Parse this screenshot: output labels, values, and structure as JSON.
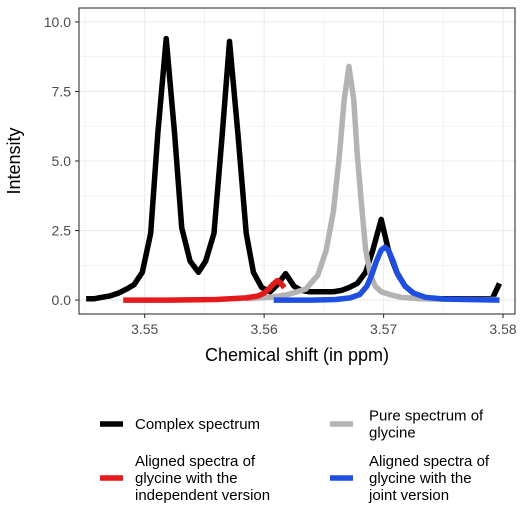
{
  "chart_data": {
    "type": "line",
    "xlabel": "Chemical shift (in ppm)",
    "ylabel": "Intensity",
    "xlim": [
      3.5445,
      3.581
    ],
    "ylim": [
      -0.5,
      10.5
    ],
    "x_ticks": [
      3.55,
      3.56,
      3.57,
      3.58
    ],
    "x_tick_labels": [
      "3.55",
      "3.56",
      "3.57",
      "3.58"
    ],
    "y_ticks": [
      0,
      2.5,
      5,
      7.5,
      10
    ],
    "y_tick_labels": [
      "0.0",
      "2.5",
      "5.0",
      "7.5",
      "10.0"
    ],
    "grid": true,
    "legend_position": "bottom",
    "series": [
      {
        "name": "Complex spectrum",
        "color": "#000000",
        "x": [
          3.5451,
          3.5458,
          3.5464,
          3.5471,
          3.5478,
          3.5485,
          3.5491,
          3.5498,
          3.5505,
          3.5511,
          3.5518,
          3.5525,
          3.5531,
          3.5538,
          3.5545,
          3.5551,
          3.5558,
          3.5565,
          3.5571,
          3.5578,
          3.5585,
          3.5591,
          3.5598,
          3.5605,
          3.5611,
          3.5618,
          3.5625,
          3.5631,
          3.5638,
          3.5645,
          3.5651,
          3.5658,
          3.5665,
          3.5671,
          3.5678,
          3.5685,
          3.5691,
          3.5698,
          3.5704,
          3.5711,
          3.5718,
          3.5725,
          3.5731,
          3.5738,
          3.5745,
          3.5751,
          3.5758,
          3.5765,
          3.5771,
          3.5778,
          3.5785,
          3.5791,
          3.5797
        ],
        "y": [
          0.05,
          0.05,
          0.1,
          0.15,
          0.25,
          0.4,
          0.55,
          1.0,
          2.4,
          6.0,
          9.4,
          6.0,
          2.6,
          1.4,
          1.0,
          1.4,
          2.4,
          6.0,
          9.3,
          6.0,
          2.4,
          1.0,
          0.45,
          0.3,
          0.55,
          0.95,
          0.5,
          0.35,
          0.3,
          0.3,
          0.3,
          0.3,
          0.35,
          0.45,
          0.6,
          1.0,
          1.8,
          2.9,
          1.8,
          1.0,
          0.5,
          0.25,
          0.1,
          0.05,
          0.05,
          0.05,
          0.05,
          0.05,
          0.05,
          0.05,
          0.05,
          0.05,
          0.6
        ]
      },
      {
        "name": "Pure spectrum of glycine",
        "color": "#b3b3b3",
        "x": [
          3.5585,
          3.5605,
          3.562,
          3.5635,
          3.5645,
          3.5652,
          3.5658,
          3.5663,
          3.5667,
          3.5671,
          3.5675,
          3.5678,
          3.5682,
          3.5685,
          3.5689,
          3.5693,
          3.5698,
          3.5705,
          3.5715,
          3.573,
          3.575,
          3.5775,
          3.5795
        ],
        "y": [
          0.05,
          0.1,
          0.2,
          0.4,
          0.9,
          1.8,
          3.2,
          5.2,
          7.2,
          8.4,
          7.2,
          5.2,
          3.2,
          1.8,
          0.9,
          0.5,
          0.3,
          0.2,
          0.1,
          0.05,
          0.03,
          0.02,
          0.02
        ]
      },
      {
        "name": "Aligned spectra of glycine with the independent version",
        "color": "#e41a1c",
        "x": [
          3.5482,
          3.552,
          3.556,
          3.5585,
          3.5595,
          3.56,
          3.5604,
          3.5607,
          3.5611,
          3.5614,
          3.5617
        ],
        "y": [
          0.0,
          0.0,
          0.02,
          0.08,
          0.15,
          0.25,
          0.4,
          0.55,
          0.7,
          0.6,
          0.45
        ]
      },
      {
        "name": "Aligned spectra of glycine with the joint version",
        "color": "#1f4fe0",
        "x": [
          3.5608,
          3.564,
          3.566,
          3.5672,
          3.568,
          3.5686,
          3.569,
          3.5694,
          3.5698,
          3.5701,
          3.5704,
          3.5708,
          3.5712,
          3.5718,
          3.5725,
          3.5735,
          3.575,
          3.577,
          3.5797
        ],
        "y": [
          0.0,
          0.0,
          0.02,
          0.08,
          0.2,
          0.5,
          0.9,
          1.4,
          1.8,
          1.9,
          1.8,
          1.4,
          0.9,
          0.5,
          0.25,
          0.1,
          0.04,
          0.02,
          0.0
        ]
      }
    ],
    "legend": [
      {
        "lines": [
          "Complex spectrum"
        ],
        "color": "#000000"
      },
      {
        "lines": [
          "Pure spectrum of",
          "glycine"
        ],
        "color": "#b3b3b3"
      },
      {
        "lines": [
          "Aligned spectra of",
          "glycine with the",
          "independent version"
        ],
        "color": "#e41a1c"
      },
      {
        "lines": [
          "Aligned spectra of",
          "glycine with the",
          "joint version"
        ],
        "color": "#1f4fe0"
      }
    ]
  }
}
